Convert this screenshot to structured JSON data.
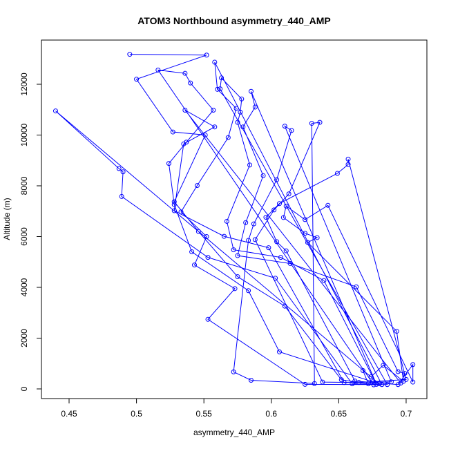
{
  "chart_data": {
    "type": "line",
    "title": "ATOM3 Northbound asymmetry_440_AMP",
    "xlabel": "asymmetry_440_AMP",
    "ylabel": "Altitude (m)",
    "xlim": [
      0.4295,
      0.7154
    ],
    "ylim": [
      -381,
      13741
    ],
    "xticks": [
      0.45,
      0.5,
      0.55,
      0.6,
      0.65,
      0.7
    ],
    "yticks": [
      0,
      2000,
      4000,
      6000,
      8000,
      10000,
      12000
    ],
    "markers": true,
    "box": true,
    "x": [
      0.495,
      0.552,
      0.5,
      0.527,
      0.551,
      0.528,
      0.546,
      0.575,
      0.61,
      0.652,
      0.676,
      0.516,
      0.536,
      0.54,
      0.557,
      0.537,
      0.524,
      0.528,
      0.541,
      0.583,
      0.606,
      0.68,
      0.44,
      0.487,
      0.49,
      0.489,
      0.553,
      0.603,
      0.66,
      0.682,
      0.558,
      0.56,
      0.574,
      0.568,
      0.545,
      0.533,
      0.552,
      0.543,
      0.573,
      0.553,
      0.625,
      0.686,
      0.562,
      0.563,
      0.578,
      0.577,
      0.575,
      0.584,
      0.567,
      0.572,
      0.607,
      0.639,
      0.678,
      0.585,
      0.588,
      0.579,
      0.594,
      0.581,
      0.575,
      0.614,
      0.663,
      0.694,
      0.699,
      0.696,
      0.536,
      0.558,
      0.535,
      0.528,
      0.565,
      0.598,
      0.654,
      0.689,
      0.61,
      0.615,
      0.604,
      0.587,
      0.583,
      0.572,
      0.585,
      0.632,
      0.63,
      0.636,
      0.613,
      0.602,
      0.588,
      0.638,
      0.665,
      0.7,
      0.657,
      0.657,
      0.649,
      0.606,
      0.596,
      0.604,
      0.611,
      0.662,
      0.694,
      0.705,
      0.705,
      0.642,
      0.625,
      0.611,
      0.609,
      0.625,
      0.634,
      0.627,
      0.693,
      0.698,
      0.683,
      0.674,
      0.668,
      0.672,
      0.675
    ],
    "series": [
      {
        "color": "#0000ff",
        "values": [
          13180,
          13150,
          12200,
          10120,
          10000,
          7370,
          6200,
          4420,
          3260,
          360,
          160,
          12560,
          12430,
          12050,
          10980,
          9720,
          8880,
          7260,
          5400,
          3870,
          1460,
          200,
          10950,
          8680,
          8550,
          7580,
          5180,
          4360,
          200,
          170,
          12870,
          11800,
          11050,
          9900,
          8010,
          6970,
          6000,
          4880,
          3950,
          2740,
          180,
          170,
          11820,
          12250,
          11420,
          10900,
          10500,
          8820,
          6600,
          5480,
          5180,
          4270,
          180,
          11720,
          11100,
          10320,
          8400,
          6550,
          5250,
          4940,
          4020,
          680,
          610,
          230,
          10980,
          10320,
          9650,
          7020,
          6010,
          5560,
          250,
          280,
          10350,
          10180,
          8240,
          6500,
          5850,
          670,
          340,
          210,
          10460,
          10500,
          7680,
          7050,
          5880,
          270,
          250,
          370,
          9050,
          8840,
          8490,
          7300,
          6760,
          5800,
          5440,
          310,
          170,
          960,
          270,
          7230,
          6670,
          7200,
          6750,
          6130,
          5960,
          5770,
          2270,
          300,
          930,
          480,
          720,
          200,
          280
        ]
      }
    ]
  }
}
